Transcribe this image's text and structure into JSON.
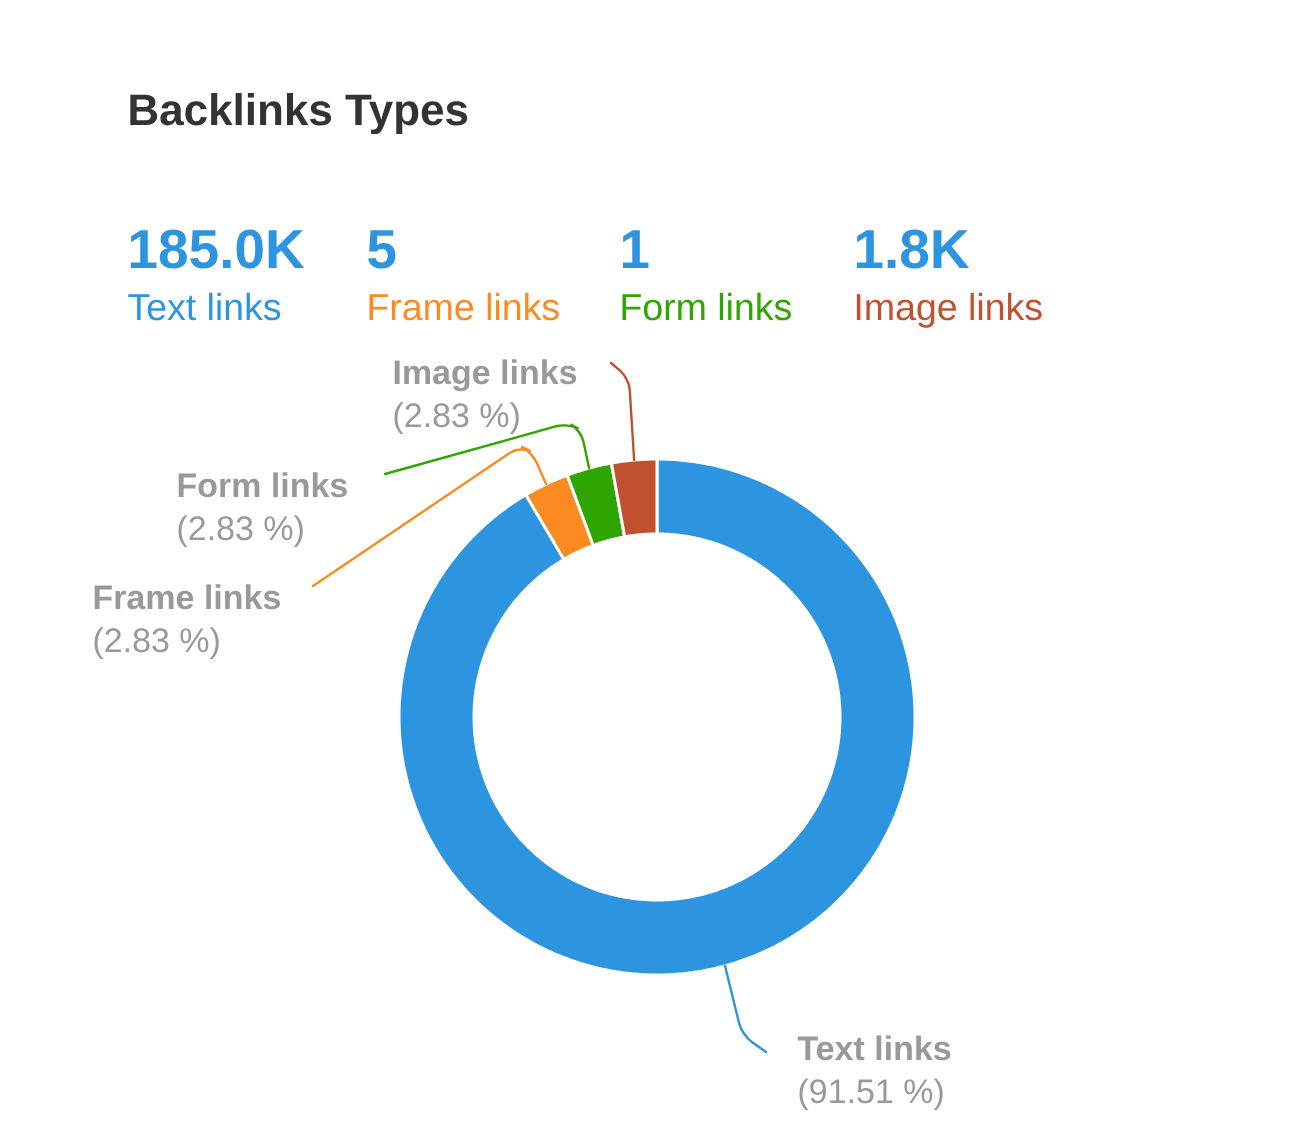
{
  "chart_data": {
    "type": "donut",
    "title": "Backlinks Types",
    "categories": [
      "Text links",
      "Frame links",
      "Form links",
      "Image links"
    ],
    "values": [
      91.51,
      2.83,
      2.83,
      2.83
    ],
    "colors": [
      "#2d94df",
      "#fd8a20",
      "#2fa500",
      "#c1512e"
    ],
    "value_labels": [
      "(91.51 %)",
      "(2.83 %)",
      "(2.83 %)",
      "(2.83 %)"
    ],
    "annotations": [
      "185.0K",
      "5",
      "1",
      "1.8K"
    ]
  }
}
